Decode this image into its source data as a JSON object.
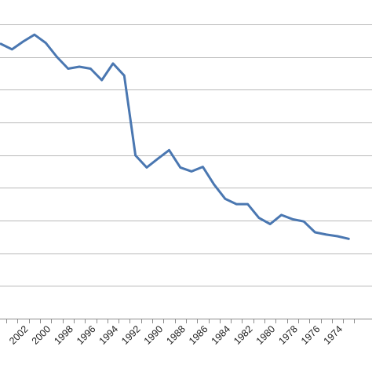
{
  "chart_data": {
    "type": "line",
    "title": "",
    "xlabel": "",
    "ylabel": "",
    "x": [
      2004,
      2003,
      2002,
      2001,
      2000,
      1999,
      1998,
      1997,
      1996,
      1995,
      1994,
      1993,
      1992,
      1991,
      1990,
      1989,
      1988,
      1987,
      1986,
      1985,
      1984,
      1983,
      1982,
      1981,
      1980,
      1979,
      1978,
      1977,
      1976,
      1975,
      1974,
      1973
    ],
    "x_tick_labels": [
      "2002",
      "2000",
      "1998",
      "1996",
      "1994",
      "1992",
      "1990",
      "1988",
      "1986",
      "1984",
      "1982",
      "1980",
      "1978",
      "1976",
      "1974"
    ],
    "series": [
      {
        "values": [
          8.4,
          8.23,
          8.47,
          8.68,
          8.43,
          8.0,
          7.64,
          7.7,
          7.64,
          7.29,
          7.8,
          7.43,
          4.99,
          4.62,
          4.89,
          5.15,
          4.62,
          4.5,
          4.64,
          4.1,
          3.66,
          3.5,
          3.5,
          3.08,
          2.89,
          3.17,
          3.04,
          2.97,
          2.64,
          2.57,
          2.52,
          2.44
        ]
      }
    ],
    "ylim": [
      0,
      9.5
    ],
    "y_gridlines": [
      0,
      1,
      2,
      3,
      4,
      5,
      6,
      7,
      8,
      9
    ],
    "y_tick_labels_visible": false,
    "grid": true,
    "legend": "none",
    "colors": {
      "line": "#4a77b1",
      "grid": "#b9b9b9",
      "axis": "#8c8c8c"
    }
  }
}
